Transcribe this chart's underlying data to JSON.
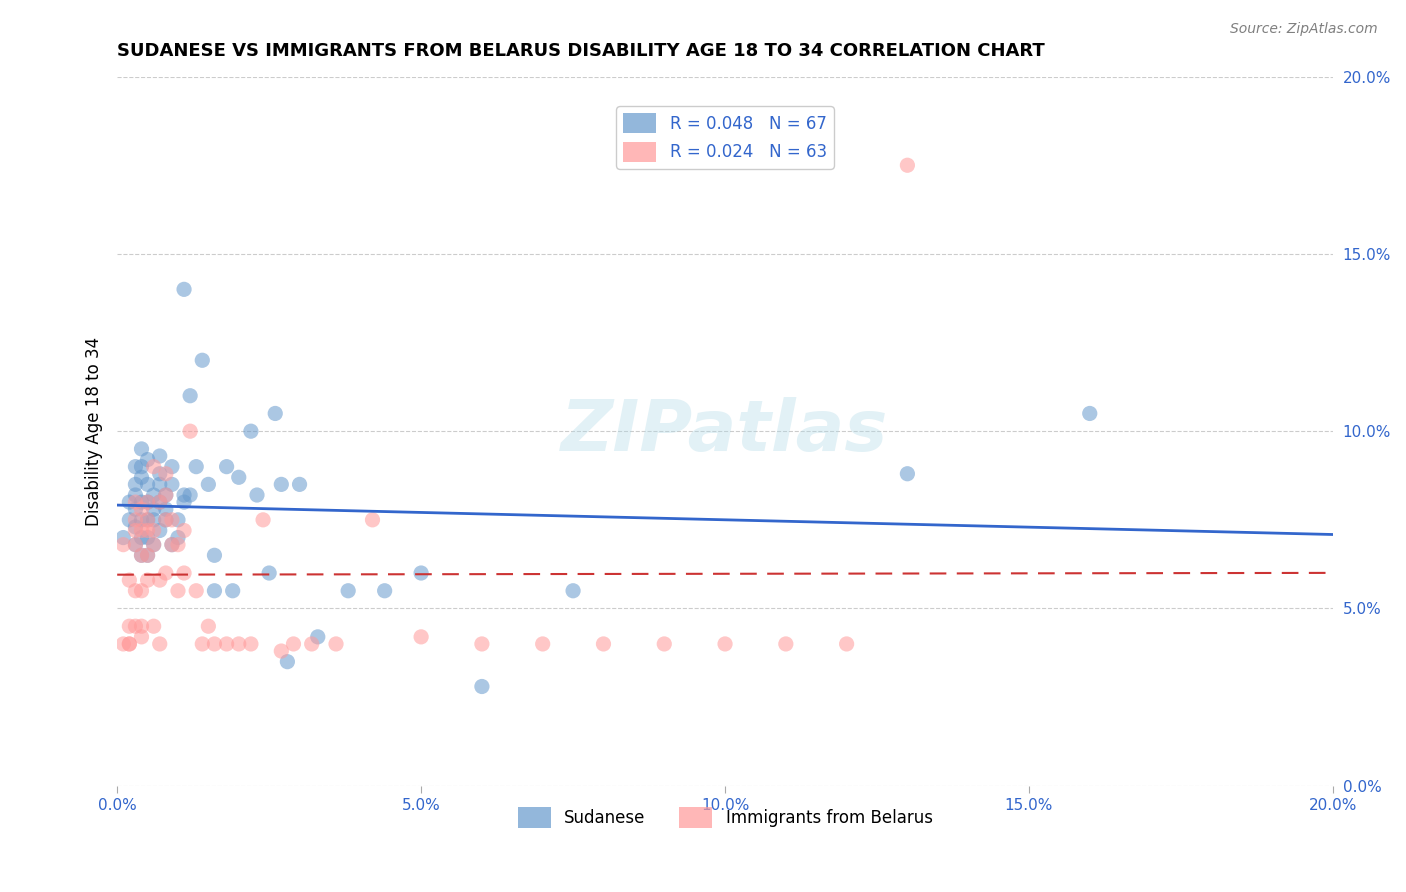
{
  "title": "SUDANESE VS IMMIGRANTS FROM BELARUS DISABILITY AGE 18 TO 34 CORRELATION CHART",
  "source": "Source: ZipAtlas.com",
  "xlabel_bottom": "",
  "ylabel": "Disability Age 18 to 34",
  "xlim": [
    0.0,
    0.2
  ],
  "ylim": [
    0.0,
    0.2
  ],
  "xticks": [
    0.0,
    0.05,
    0.1,
    0.15,
    0.2
  ],
  "yticks_left": [],
  "yticks_right": [
    0.0,
    0.05,
    0.1,
    0.15,
    0.2
  ],
  "xtick_labels": [
    "0.0%",
    "5.0%",
    "10.0%",
    "15.0%",
    "20.0%"
  ],
  "ytick_labels_right": [
    "0.0%",
    "5.0%",
    "10.0%",
    "15.0%",
    "20.0%"
  ],
  "legend_entries": [
    {
      "label": "R = 0.048   N = 67",
      "color": "#6699cc"
    },
    {
      "label": "R = 0.024   N = 63",
      "color": "#ff9999"
    }
  ],
  "sudanese_color": "#6699cc",
  "belarus_color": "#ff9999",
  "trend_sudanese_color": "#3366cc",
  "trend_belarus_color": "#cc3333",
  "watermark": "ZIPatlas",
  "sudanese_x": [
    0.001,
    0.002,
    0.002,
    0.003,
    0.003,
    0.003,
    0.003,
    0.003,
    0.003,
    0.004,
    0.004,
    0.004,
    0.004,
    0.004,
    0.004,
    0.004,
    0.005,
    0.005,
    0.005,
    0.005,
    0.005,
    0.005,
    0.006,
    0.006,
    0.006,
    0.006,
    0.007,
    0.007,
    0.007,
    0.007,
    0.007,
    0.008,
    0.008,
    0.008,
    0.009,
    0.009,
    0.009,
    0.01,
    0.01,
    0.011,
    0.011,
    0.011,
    0.012,
    0.012,
    0.013,
    0.014,
    0.015,
    0.016,
    0.016,
    0.018,
    0.019,
    0.02,
    0.022,
    0.023,
    0.025,
    0.026,
    0.027,
    0.028,
    0.03,
    0.033,
    0.038,
    0.044,
    0.05,
    0.06,
    0.075,
    0.13,
    0.16
  ],
  "sudanese_y": [
    0.07,
    0.08,
    0.075,
    0.082,
    0.078,
    0.073,
    0.068,
    0.09,
    0.085,
    0.08,
    0.075,
    0.07,
    0.065,
    0.09,
    0.095,
    0.087,
    0.08,
    0.075,
    0.085,
    0.092,
    0.07,
    0.065,
    0.075,
    0.068,
    0.082,
    0.078,
    0.085,
    0.08,
    0.072,
    0.088,
    0.093,
    0.078,
    0.082,
    0.075,
    0.068,
    0.085,
    0.09,
    0.075,
    0.07,
    0.082,
    0.08,
    0.14,
    0.082,
    0.11,
    0.09,
    0.12,
    0.085,
    0.065,
    0.055,
    0.09,
    0.055,
    0.087,
    0.1,
    0.082,
    0.06,
    0.105,
    0.085,
    0.035,
    0.085,
    0.042,
    0.055,
    0.055,
    0.06,
    0.028,
    0.055,
    0.088,
    0.105
  ],
  "belarus_x": [
    0.001,
    0.001,
    0.002,
    0.002,
    0.002,
    0.002,
    0.003,
    0.003,
    0.003,
    0.003,
    0.003,
    0.003,
    0.004,
    0.004,
    0.004,
    0.004,
    0.004,
    0.004,
    0.005,
    0.005,
    0.005,
    0.005,
    0.005,
    0.006,
    0.006,
    0.006,
    0.006,
    0.007,
    0.007,
    0.007,
    0.008,
    0.008,
    0.008,
    0.008,
    0.009,
    0.009,
    0.01,
    0.01,
    0.011,
    0.011,
    0.012,
    0.013,
    0.014,
    0.015,
    0.016,
    0.018,
    0.02,
    0.022,
    0.024,
    0.027,
    0.029,
    0.032,
    0.036,
    0.042,
    0.05,
    0.06,
    0.07,
    0.08,
    0.09,
    0.1,
    0.11,
    0.12,
    0.13
  ],
  "belarus_y": [
    0.068,
    0.04,
    0.04,
    0.058,
    0.045,
    0.04,
    0.068,
    0.08,
    0.075,
    0.055,
    0.072,
    0.045,
    0.055,
    0.078,
    0.065,
    0.072,
    0.045,
    0.042,
    0.075,
    0.08,
    0.058,
    0.072,
    0.065,
    0.068,
    0.072,
    0.09,
    0.045,
    0.08,
    0.058,
    0.04,
    0.082,
    0.088,
    0.075,
    0.06,
    0.068,
    0.075,
    0.068,
    0.055,
    0.072,
    0.06,
    0.1,
    0.055,
    0.04,
    0.045,
    0.04,
    0.04,
    0.04,
    0.04,
    0.075,
    0.038,
    0.04,
    0.04,
    0.04,
    0.075,
    0.042,
    0.04,
    0.04,
    0.04,
    0.04,
    0.04,
    0.04,
    0.04,
    0.175
  ]
}
